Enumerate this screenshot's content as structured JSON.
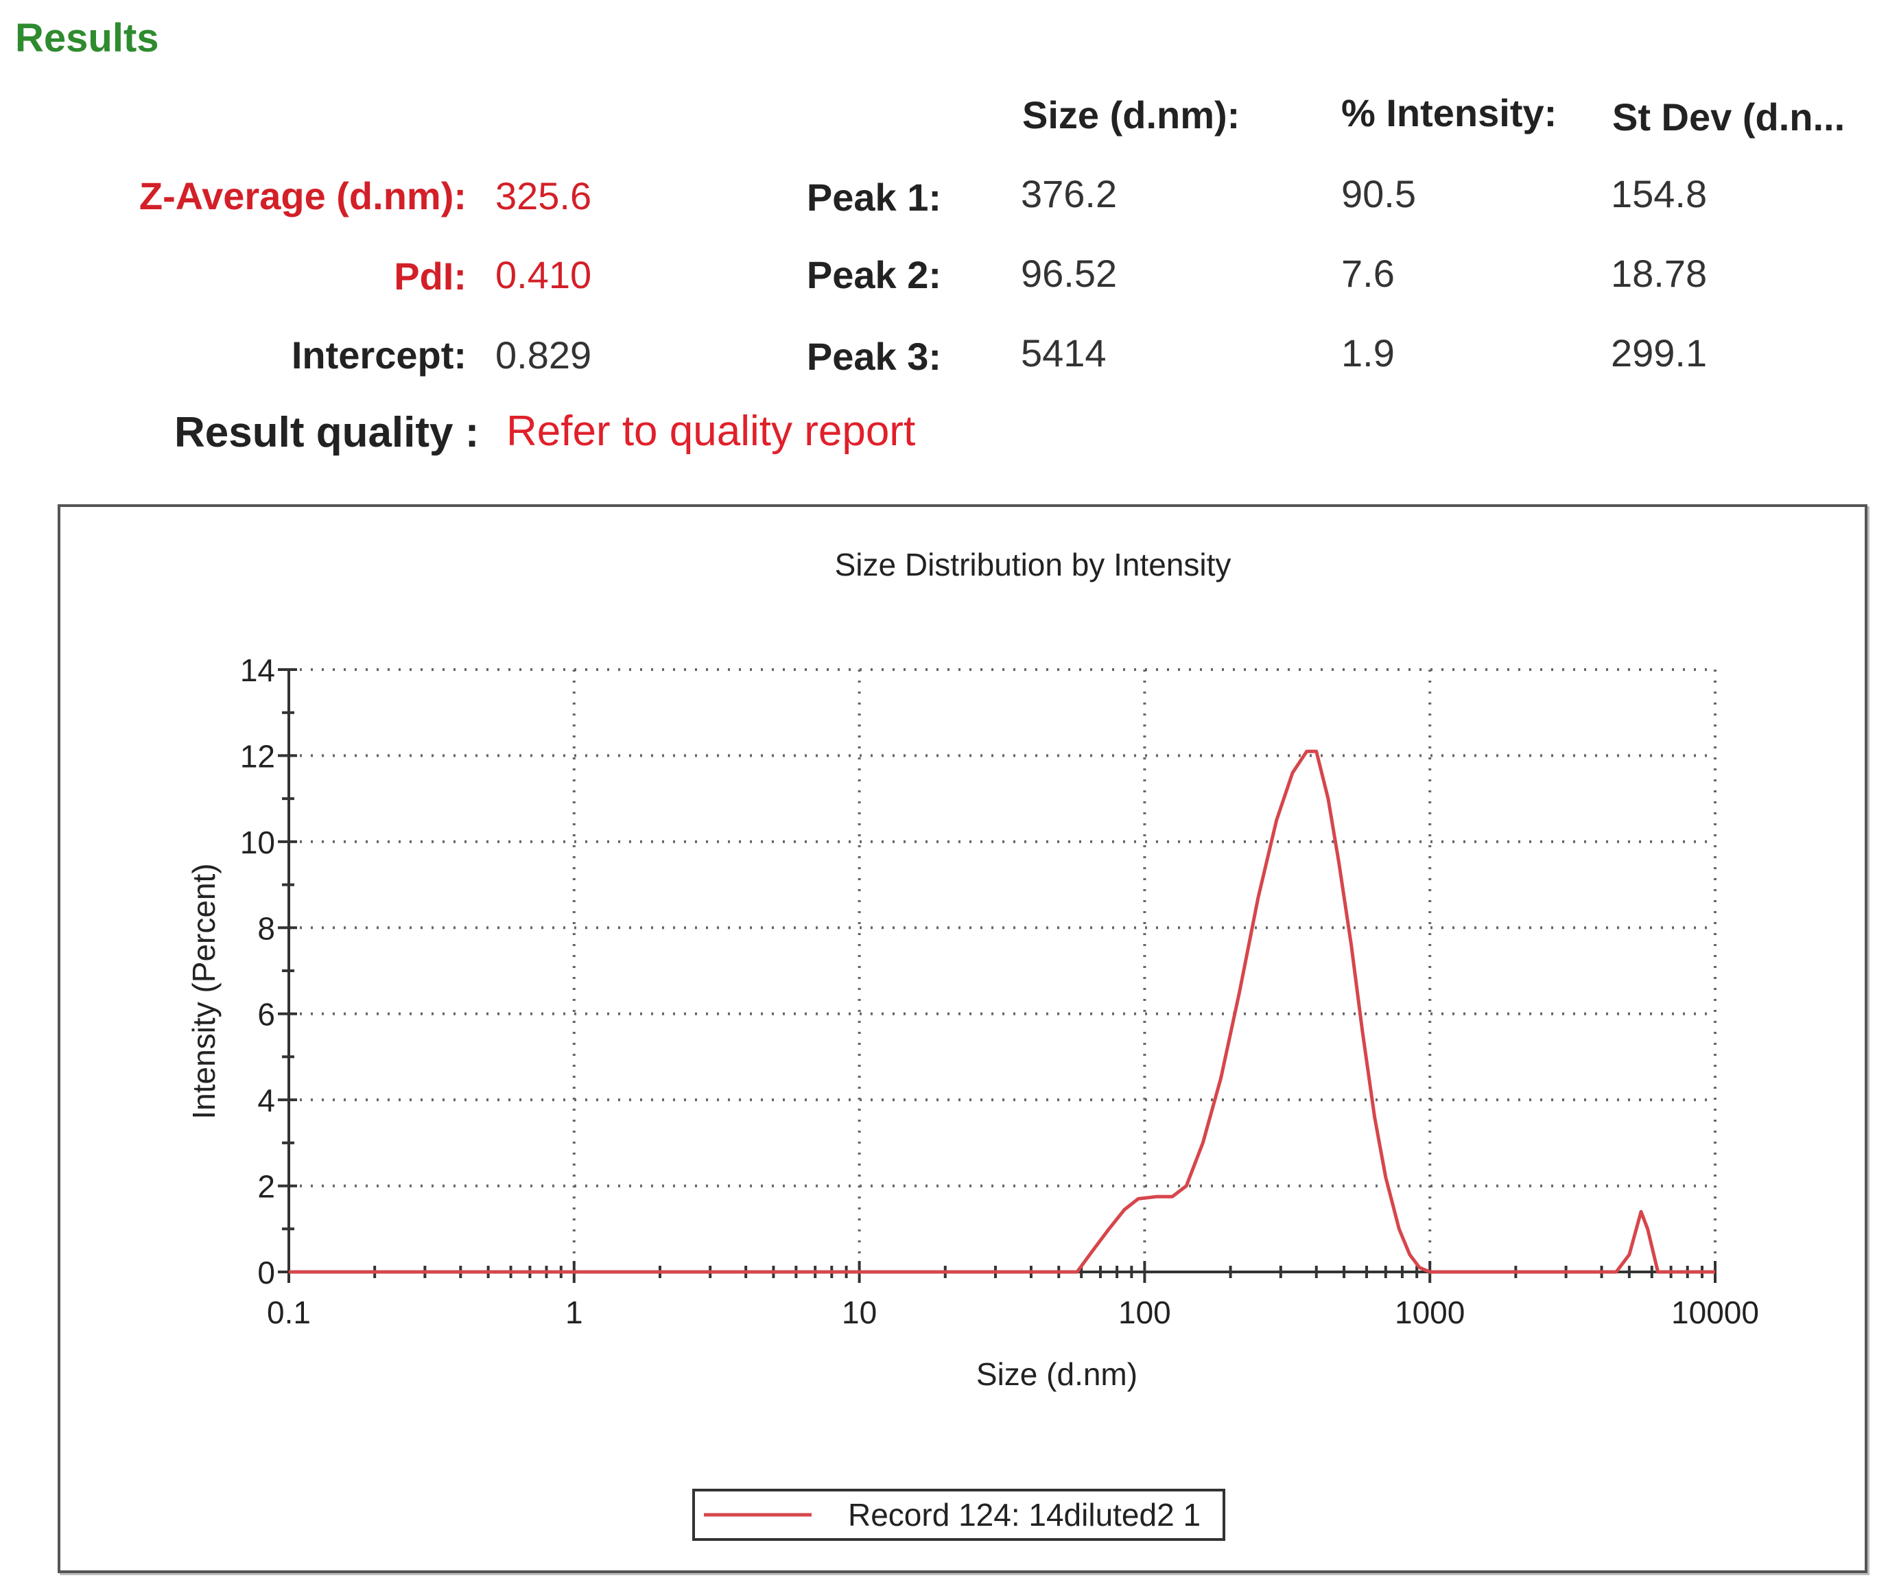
{
  "results": {
    "heading": "Results",
    "columns": {
      "size": "Size (d.nm):",
      "intensity": "% Intensity:",
      "stdev": "St Dev (d.n..."
    },
    "left": [
      {
        "label": "Z-Average (d.nm):",
        "value": "325.6"
      },
      {
        "label": "PdI:",
        "value": "0.410"
      },
      {
        "label": "Intercept:",
        "value": "0.829"
      }
    ],
    "peaks": [
      {
        "label": "Peak 1:",
        "size": "376.2",
        "intensity": "90.5",
        "stdev": "154.8"
      },
      {
        "label": "Peak 2:",
        "size": "96.52",
        "intensity": "7.6",
        "stdev": "18.78"
      },
      {
        "label": "Peak 3:",
        "size": "5414",
        "intensity": "1.9",
        "stdev": "299.1"
      }
    ],
    "quality_label": "Result quality :",
    "quality_value": "Refer to quality report"
  },
  "colors": {
    "heading": "#2e8b2e",
    "alert_red": "#d32028",
    "series": "#d6464b"
  },
  "chart_data": {
    "type": "line",
    "title": "Size Distribution by Intensity",
    "xlabel": "Size (d.nm)",
    "ylabel": "Intensity (Percent)",
    "xscale": "log",
    "xlim": [
      0.1,
      10000
    ],
    "ylim": [
      0,
      14
    ],
    "xticks": [
      0.1,
      1,
      10,
      100,
      1000,
      10000
    ],
    "xtick_labels": [
      "0.1",
      "1",
      "10",
      "100",
      "1000",
      "10000"
    ],
    "yticks": [
      0,
      2,
      4,
      6,
      8,
      10,
      12,
      14
    ],
    "ytick_labels": [
      "0",
      "2",
      "4",
      "6",
      "8",
      "10",
      "12",
      "14"
    ],
    "grid": true,
    "legend_position": "bottom-center",
    "series": [
      {
        "name": "Record 124: 14diluted2 1",
        "x": [
          0.1,
          58,
          65,
          75,
          85,
          95,
          110,
          125,
          140,
          160,
          185,
          215,
          250,
          290,
          330,
          370,
          400,
          440,
          480,
          530,
          580,
          640,
          700,
          780,
          850,
          920,
          1000,
          2000,
          4500,
          5000,
          5500,
          5800,
          6300,
          6800,
          10000
        ],
        "y": [
          0,
          0,
          0.45,
          1.0,
          1.45,
          1.7,
          1.75,
          1.75,
          2.0,
          3.0,
          4.5,
          6.5,
          8.7,
          10.5,
          11.6,
          12.1,
          12.1,
          11.0,
          9.5,
          7.6,
          5.6,
          3.6,
          2.2,
          1.0,
          0.4,
          0.1,
          0,
          0,
          0,
          0.4,
          1.4,
          1.0,
          0,
          0,
          0
        ]
      }
    ]
  }
}
